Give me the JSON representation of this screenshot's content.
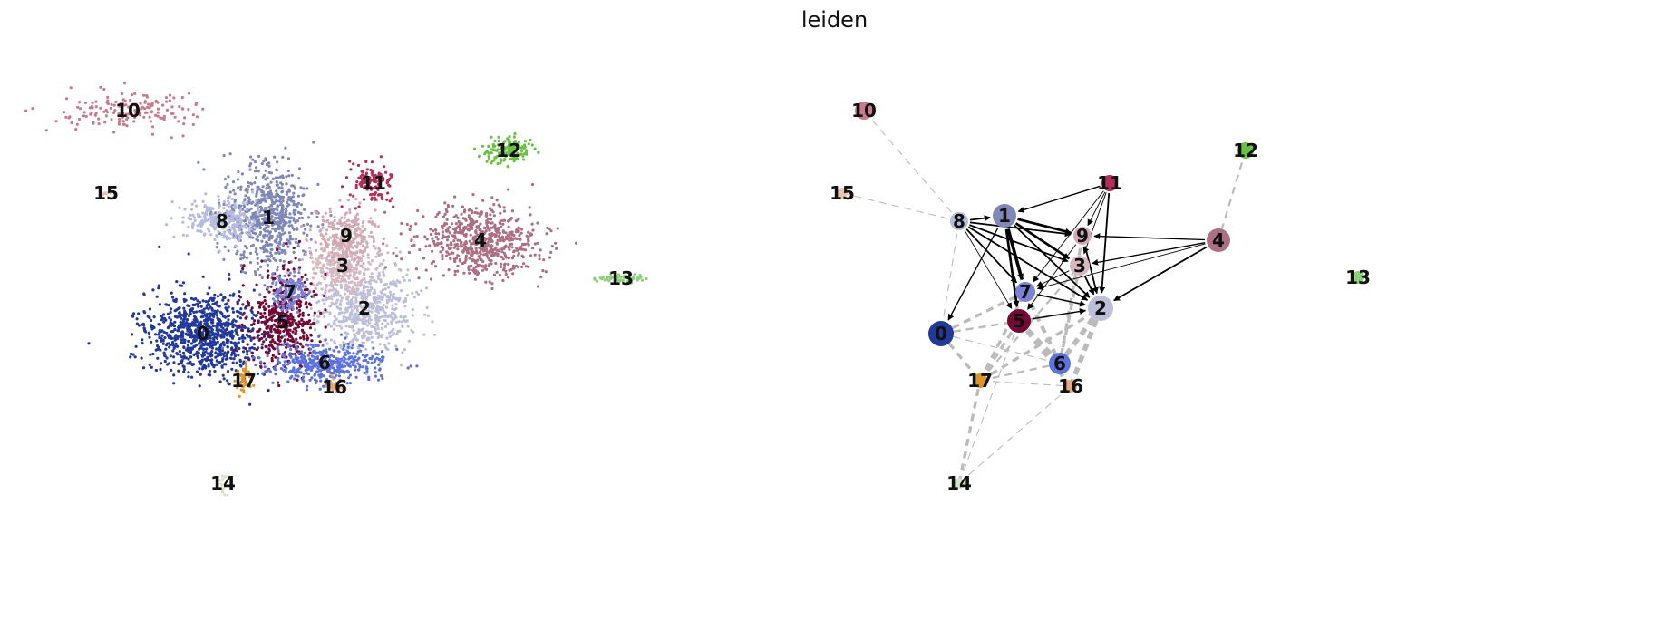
{
  "title": "leiden",
  "chart_data": [
    {
      "type": "scatter",
      "title": "",
      "xlabel": "",
      "ylabel": "",
      "legend": "on data",
      "axes": "off",
      "clusters": [
        {
          "id": "0",
          "color": "#23399a",
          "center": [
            224,
            368
          ],
          "spread": [
            52,
            38
          ],
          "n": 900
        },
        {
          "id": "1",
          "color": "#7f88b8",
          "center": [
            296,
            240
          ],
          "spread": [
            40,
            48
          ],
          "n": 650
        },
        {
          "id": "2",
          "color": "#bdbfd8",
          "center": [
            402,
            340
          ],
          "spread": [
            45,
            42
          ],
          "n": 600
        },
        {
          "id": "3",
          "color": "#d8b9c0",
          "center": [
            378,
            293
          ],
          "spread": [
            32,
            28
          ],
          "n": 300
        },
        {
          "id": "4",
          "color": "#ab7083",
          "center": [
            530,
            265
          ],
          "spread": [
            58,
            30
          ],
          "n": 650
        },
        {
          "id": "5",
          "color": "#730935",
          "center": [
            312,
            355
          ],
          "spread": [
            30,
            42
          ],
          "n": 450
        },
        {
          "id": "6",
          "color": "#5c72dc",
          "center": [
            358,
            400
          ],
          "spread": [
            52,
            18
          ],
          "n": 420
        },
        {
          "id": "7",
          "color": "#7a82d6",
          "center": [
            320,
            322
          ],
          "spread": [
            18,
            18
          ],
          "n": 150
        },
        {
          "id": "8",
          "color": "#b7bcde",
          "center": [
            245,
            244
          ],
          "spread": [
            35,
            18
          ],
          "n": 260
        },
        {
          "id": "9",
          "color": "#d2a9b4",
          "center": [
            382,
            260
          ],
          "spread": [
            28,
            24
          ],
          "n": 250
        },
        {
          "id": "10",
          "color": "#c87a8f",
          "center": [
            141,
            122
          ],
          "spread": [
            60,
            18
          ],
          "n": 170
        },
        {
          "id": "11",
          "color": "#b32f5b",
          "center": [
            412,
            202
          ],
          "spread": [
            18,
            20
          ],
          "n": 130
        },
        {
          "id": "12",
          "color": "#6ac245",
          "center": [
            561,
            166
          ],
          "spread": [
            22,
            13
          ],
          "n": 150
        },
        {
          "id": "13",
          "color": "#8ed07a",
          "center": [
            685,
            307
          ],
          "spread": [
            20,
            4
          ],
          "n": 60
        },
        {
          "id": "14",
          "color": "#d6e3cf",
          "center": [
            246,
            533
          ],
          "spread": [
            3,
            12
          ],
          "n": 14
        },
        {
          "id": "15",
          "color": "#e6c8b0",
          "center": [
            117,
            213
          ],
          "spread": [
            6,
            2
          ],
          "n": 10
        },
        {
          "id": "16",
          "color": "#e3a985",
          "center": [
            369,
            427
          ],
          "spread": [
            7,
            6
          ],
          "n": 40
        },
        {
          "id": "17",
          "color": "#d8962c",
          "center": [
            269,
            420
          ],
          "spread": [
            6,
            12
          ],
          "n": 50
        }
      ]
    },
    {
      "type": "graph",
      "title": "",
      "legend": "on data",
      "nodes": [
        {
          "id": "0",
          "color": "#23399a",
          "pos": [
            1038,
            368
          ],
          "size": 14
        },
        {
          "id": "1",
          "color": "#7f88b8",
          "pos": [
            1108,
            238
          ],
          "size": 13
        },
        {
          "id": "2",
          "color": "#bdbfd8",
          "pos": [
            1214,
            340
          ],
          "size": 14
        },
        {
          "id": "3",
          "color": "#d8b9c0",
          "pos": [
            1191,
            293
          ],
          "size": 11
        },
        {
          "id": "4",
          "color": "#ab7083",
          "pos": [
            1344,
            265
          ],
          "size": 13
        },
        {
          "id": "5",
          "color": "#730935",
          "pos": [
            1124,
            354
          ],
          "size": 13
        },
        {
          "id": "6",
          "color": "#5c72dc",
          "pos": [
            1169,
            401
          ],
          "size": 12
        },
        {
          "id": "7",
          "color": "#7a82d6",
          "pos": [
            1131,
            322
          ],
          "size": 11
        },
        {
          "id": "8",
          "color": "#b7bcde",
          "pos": [
            1058,
            244
          ],
          "size": 10
        },
        {
          "id": "9",
          "color": "#d2a9b4",
          "pos": [
            1194,
            260
          ],
          "size": 10
        },
        {
          "id": "10",
          "color": "#c87a8f",
          "pos": [
            953,
            122
          ],
          "size": 10
        },
        {
          "id": "11",
          "color": "#b32f5b",
          "pos": [
            1224,
            202
          ],
          "size": 9
        },
        {
          "id": "12",
          "color": "#6ac245",
          "pos": [
            1374,
            166
          ],
          "size": 9
        },
        {
          "id": "13",
          "color": "#8ed07a",
          "pos": [
            1498,
            306
          ],
          "size": 7
        },
        {
          "id": "14",
          "color": "#d6e3cf",
          "pos": [
            1058,
            533
          ],
          "size": 6
        },
        {
          "id": "15",
          "color": "#e6c8b0",
          "pos": [
            929,
            213
          ],
          "size": 6
        },
        {
          "id": "16",
          "color": "#e3a985",
          "pos": [
            1181,
            426
          ],
          "size": 7
        },
        {
          "id": "17",
          "color": "#d8962c",
          "pos": [
            1081,
            420
          ],
          "size": 8
        }
      ],
      "undirected_edges": [
        {
          "source": "10",
          "target": "8",
          "weight": 1
        },
        {
          "source": "15",
          "target": "8",
          "weight": 1
        },
        {
          "source": "12",
          "target": "4",
          "weight": 2
        },
        {
          "source": "8",
          "target": "0",
          "weight": 1
        },
        {
          "source": "0",
          "target": "7",
          "weight": 3
        },
        {
          "source": "0",
          "target": "5",
          "weight": 2
        },
        {
          "source": "0",
          "target": "2",
          "weight": 2
        },
        {
          "source": "0",
          "target": "6",
          "weight": 1
        },
        {
          "source": "0",
          "target": "17",
          "weight": 3
        },
        {
          "source": "7",
          "target": "6",
          "weight": 4
        },
        {
          "source": "5",
          "target": "6",
          "weight": 5
        },
        {
          "source": "2",
          "target": "6",
          "weight": 5
        },
        {
          "source": "3",
          "target": "6",
          "weight": 3
        },
        {
          "source": "2",
          "target": "16",
          "weight": 5
        },
        {
          "source": "5",
          "target": "16",
          "weight": 4
        },
        {
          "source": "17",
          "target": "7",
          "weight": 3
        },
        {
          "source": "17",
          "target": "5",
          "weight": 3
        },
        {
          "source": "17",
          "target": "2",
          "weight": 3
        },
        {
          "source": "17",
          "target": "3",
          "weight": 2
        },
        {
          "source": "17",
          "target": "6",
          "weight": 2
        },
        {
          "source": "17",
          "target": "16",
          "weight": 1
        },
        {
          "source": "14",
          "target": "17",
          "weight": 3
        },
        {
          "source": "14",
          "target": "5",
          "weight": 1
        },
        {
          "source": "14",
          "target": "16",
          "weight": 1
        },
        {
          "source": "9",
          "target": "6",
          "weight": 3
        },
        {
          "source": "7",
          "target": "2",
          "weight": 2
        }
      ],
      "arrows": [
        {
          "source": "8",
          "target": "1",
          "weight": 2
        },
        {
          "source": "8",
          "target": "9",
          "weight": 2
        },
        {
          "source": "8",
          "target": "3",
          "weight": 2
        },
        {
          "source": "8",
          "target": "7",
          "weight": 2
        },
        {
          "source": "8",
          "target": "5",
          "weight": 1
        },
        {
          "source": "8",
          "target": "2",
          "weight": 2
        },
        {
          "source": "1",
          "target": "0",
          "weight": 1.5
        },
        {
          "source": "1",
          "target": "9",
          "weight": 3
        },
        {
          "source": "1",
          "target": "3",
          "weight": 3
        },
        {
          "source": "1",
          "target": "7",
          "weight": 4
        },
        {
          "source": "1",
          "target": "5",
          "weight": 3
        },
        {
          "source": "1",
          "target": "2",
          "weight": 2
        },
        {
          "source": "11",
          "target": "1",
          "weight": 1.5
        },
        {
          "source": "11",
          "target": "9",
          "weight": 1
        },
        {
          "source": "11",
          "target": "3",
          "weight": 1
        },
        {
          "source": "11",
          "target": "7",
          "weight": 1
        },
        {
          "source": "11",
          "target": "2",
          "weight": 2
        },
        {
          "source": "4",
          "target": "9",
          "weight": 1.5
        },
        {
          "source": "4",
          "target": "3",
          "weight": 1.5
        },
        {
          "source": "4",
          "target": "7",
          "weight": 1
        },
        {
          "source": "4",
          "target": "2",
          "weight": 2
        },
        {
          "source": "9",
          "target": "2",
          "weight": 2
        },
        {
          "source": "3",
          "target": "2",
          "weight": 2
        },
        {
          "source": "7",
          "target": "2",
          "weight": 1.5
        },
        {
          "source": "5",
          "target": "2",
          "weight": 1.5
        },
        {
          "source": "3",
          "target": "7",
          "weight": 1
        },
        {
          "source": "9",
          "target": "5",
          "weight": 1
        }
      ]
    }
  ]
}
